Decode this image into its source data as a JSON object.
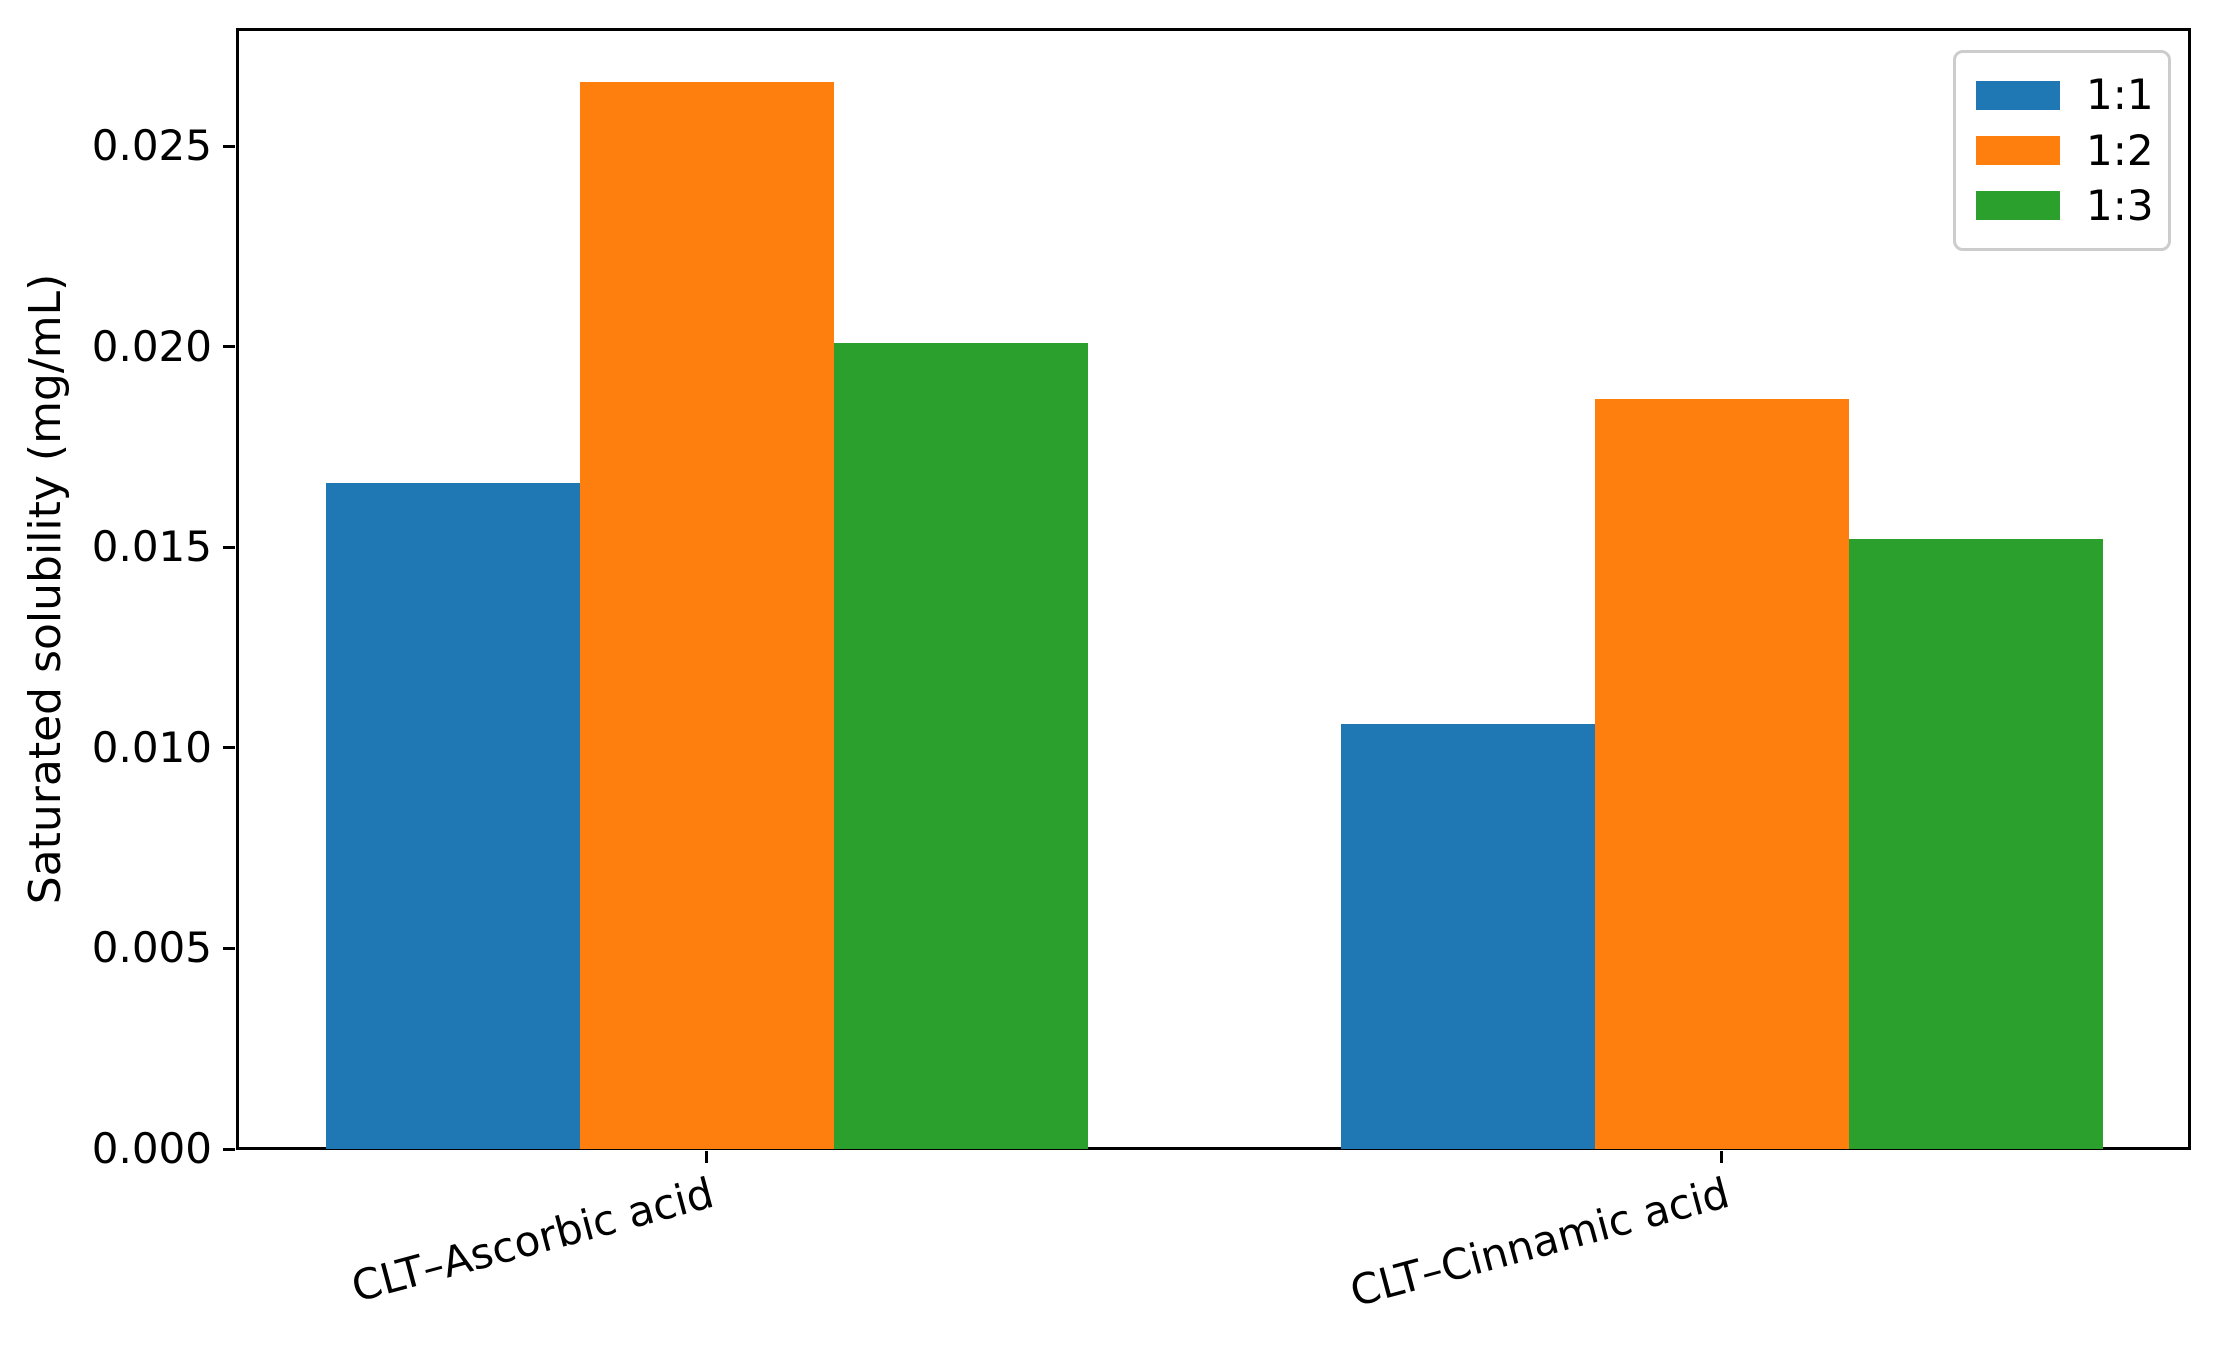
{
  "chart_data": {
    "type": "bar",
    "title": "",
    "xlabel": "",
    "ylabel": "Saturated solubility (mg/mL)",
    "categories": [
      "CLT–Ascorbic acid",
      "CLT–Cinnamic acid"
    ],
    "series": [
      {
        "name": "1:1",
        "color": "#1f77b4",
        "values": [
          0.0166,
          0.0106
        ]
      },
      {
        "name": "1:2",
        "color": "#ff7f0e",
        "values": [
          0.0266,
          0.0187
        ]
      },
      {
        "name": "1:3",
        "color": "#2ca02c",
        "values": [
          0.0201,
          0.0152
        ]
      }
    ],
    "ylim": [
      0,
      0.02793
    ],
    "yticks": [
      0.0,
      0.005,
      0.01,
      0.015,
      0.02,
      0.025
    ],
    "ytick_decimals": 3,
    "grid": false,
    "legend_position": "upper right",
    "x_tick_rotation_deg": 15,
    "axis_color": "#000000",
    "legend_border_color": "#cccccc",
    "background_color": "#ffffff"
  }
}
